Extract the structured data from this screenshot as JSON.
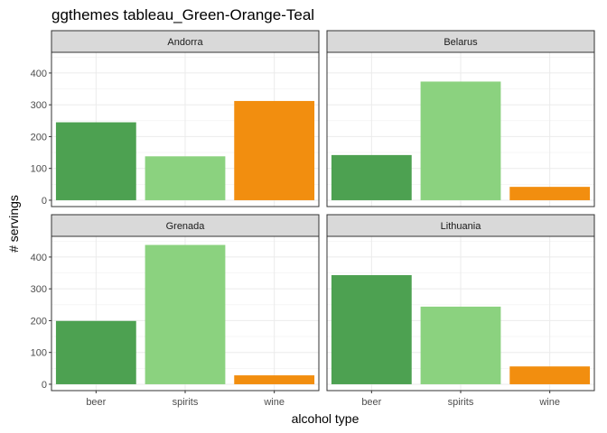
{
  "chart_data": {
    "type": "bar",
    "title": "ggthemes tableau_Green-Orange-Teal",
    "xlabel": "alcohol type",
    "ylabel": "# servings",
    "categories": [
      "beer",
      "spirits",
      "wine"
    ],
    "colors": [
      "#4da151",
      "#8bd27f",
      "#f28e0f"
    ],
    "ylim": [
      -20,
      465
    ],
    "yticks": [
      0,
      100,
      200,
      300,
      400
    ],
    "grid": true,
    "legend": "none",
    "panels": [
      {
        "name": "Andorra",
        "values": [
          245,
          138,
          312
        ]
      },
      {
        "name": "Belarus",
        "values": [
          142,
          373,
          42
        ]
      },
      {
        "name": "Grenada",
        "values": [
          199,
          438,
          28
        ]
      },
      {
        "name": "Lithuania",
        "values": [
          343,
          244,
          56
        ]
      }
    ]
  }
}
